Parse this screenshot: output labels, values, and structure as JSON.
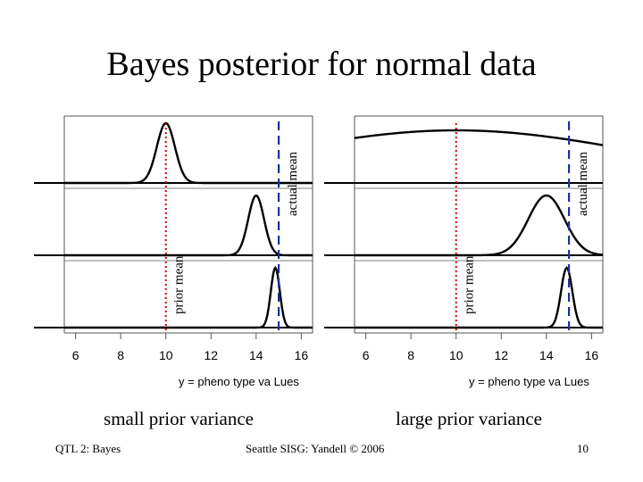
{
  "title": "Bayes posterior for normal data",
  "colors": {
    "prior_line": "#cc0000",
    "actual_line": "#1f2fa0",
    "curve": "#000000",
    "axis": "#555555"
  },
  "chart_data": [
    {
      "type": "line",
      "caption": "small prior variance",
      "xlabel": "y = pheno type va Lues",
      "xlim": [
        5.5,
        16.5
      ],
      "xticks": [
        6,
        8,
        10,
        12,
        14,
        16
      ],
      "prior_mean": 10,
      "actual_mean": 15,
      "prior_mean_label": "prior mean",
      "actual_mean_label": "actual mean",
      "panels": [
        {
          "mean": 10,
          "sd": 0.4
        },
        {
          "mean": 14,
          "sd": 0.35
        },
        {
          "mean": 14.85,
          "sd": 0.2
        }
      ]
    },
    {
      "type": "line",
      "caption": "large prior variance",
      "xlabel": "y = pheno type va Lues",
      "xlim": [
        5.5,
        16.5
      ],
      "xticks": [
        6,
        8,
        10,
        12,
        14,
        16
      ],
      "prior_mean": 10,
      "actual_mean": 15,
      "prior_mean_label": "prior mean",
      "actual_mean_label": "actual mean",
      "panels": [
        {
          "mean": 10,
          "sd": 8
        },
        {
          "mean": 14,
          "sd": 0.8
        },
        {
          "mean": 14.9,
          "sd": 0.25
        }
      ]
    }
  ],
  "footer": {
    "left": "QTL 2: Bayes",
    "center": "Seattle SISG: Yandell © 2006",
    "right": "10"
  }
}
